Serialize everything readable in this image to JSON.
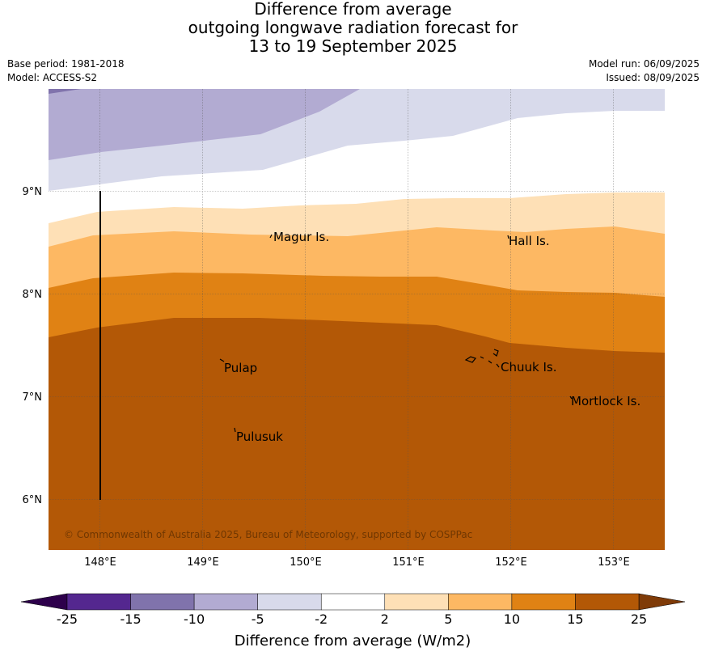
{
  "title": {
    "line1": "Difference from average",
    "line2": "outgoing longwave radiation forecast for",
    "line3": "13 to 19 September 2025"
  },
  "meta": {
    "base_period": "Base period: 1981-2018",
    "model": "Model: ACCESS-S2",
    "model_run": "Model run: 06/09/2025",
    "issued": "Issued: 08/09/2025"
  },
  "map": {
    "lat_labels": [
      "9°N",
      "8°N",
      "7°N",
      "6°N"
    ],
    "lon_labels": [
      "148°E",
      "149°E",
      "150°E",
      "151°E",
      "152°E",
      "153°E"
    ],
    "places": {
      "magur": "Magur Is.",
      "hall": "Hall Is.",
      "pulap": "Pulap",
      "chuuk": "Chuuk Is.",
      "mortlock": "Mortlock Is.",
      "pulusuk": "Pulusuk"
    },
    "copyright": "© Commonwealth of Australia 2025, Bureau of Meteorology, supported by COSPPac"
  },
  "colorbar": {
    "label": "Difference from average (W/m2)",
    "ticks": [
      "-25",
      "-15",
      "-10",
      "-5",
      "-2",
      "2",
      "5",
      "10",
      "15",
      "25"
    ],
    "colors": [
      "#54278f",
      "#8073ac",
      "#b2abd2",
      "#d8daeb",
      "#ffffff",
      "#fee0b6",
      "#fdb863",
      "#e08214",
      "#b35806"
    ],
    "under_color": "#2d004b",
    "over_color": "#7f3b08"
  }
}
